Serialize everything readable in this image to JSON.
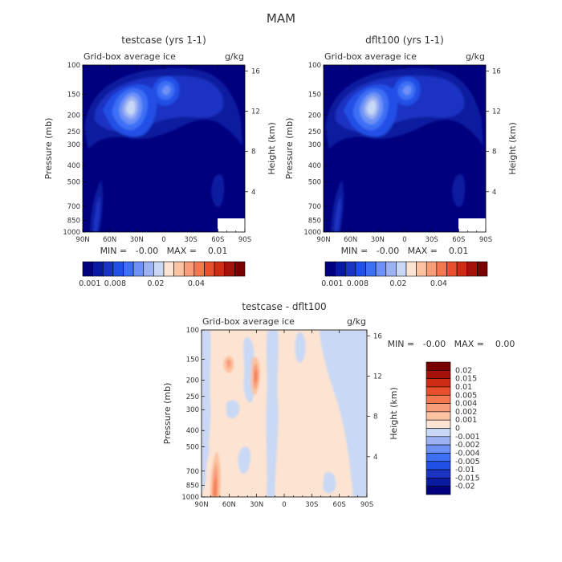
{
  "main_title": "MAM",
  "chart_data": [
    {
      "type": "heatmap",
      "title": "testcase (yrs 1-1)",
      "subtitle_left": "Grid-box average ice",
      "subtitle_right": "g/kg",
      "xlabel": "",
      "ylabel": "Pressure (mb)",
      "ylabel_right": "Height (km)",
      "x_ticks": [
        "90N",
        "60N",
        "30N",
        "0",
        "30S",
        "60S",
        "90S"
      ],
      "y_ticks": [
        "100",
        "150",
        "200",
        "250",
        "300",
        "400",
        "500",
        "700",
        "850",
        "1000"
      ],
      "y_ticks_right": [
        "16",
        "12",
        "8",
        "4"
      ],
      "stats": "MIN =   -0.00   MAX =    0.01",
      "colorbar": {
        "orientation": "horizontal",
        "labels": [
          "0.001",
          "0.008",
          "0.02",
          "0.04"
        ],
        "colors": [
          "#00007f",
          "#0a1a9e",
          "#1a33c2",
          "#2050e6",
          "#3d6ff5",
          "#6e91f7",
          "#9cb2f2",
          "#c8d8f5",
          "#fde4d2",
          "#fcc2a2",
          "#f89d7a",
          "#f4784f",
          "#e84f2c",
          "#cf2c16",
          "#a51209",
          "#7a0000"
        ]
      }
    },
    {
      "type": "heatmap",
      "title": "dflt100 (yrs 1-1)",
      "subtitle_left": "Grid-box average ice",
      "subtitle_right": "g/kg",
      "xlabel": "",
      "ylabel": "Pressure (mb)",
      "ylabel_right": "Height (km)",
      "x_ticks": [
        "90N",
        "60N",
        "30N",
        "0",
        "30S",
        "60S",
        "90S"
      ],
      "y_ticks": [
        "100",
        "150",
        "200",
        "250",
        "300",
        "400",
        "500",
        "700",
        "850",
        "1000"
      ],
      "y_ticks_right": [
        "16",
        "12",
        "8",
        "4"
      ],
      "stats": "MIN =   -0.00   MAX =    0.01",
      "colorbar": {
        "orientation": "horizontal",
        "labels": [
          "0.001",
          "0.008",
          "0.02",
          "0.04"
        ],
        "colors": [
          "#00007f",
          "#0a1a9e",
          "#1a33c2",
          "#2050e6",
          "#3d6ff5",
          "#6e91f7",
          "#9cb2f2",
          "#c8d8f5",
          "#fde4d2",
          "#fcc2a2",
          "#f89d7a",
          "#f4784f",
          "#e84f2c",
          "#cf2c16",
          "#a51209",
          "#7a0000"
        ]
      }
    },
    {
      "type": "heatmap",
      "title": "testcase - dflt100",
      "subtitle_left": "Grid-box average ice",
      "subtitle_right": "g/kg",
      "xlabel": "",
      "ylabel": "Pressure (mb)",
      "ylabel_right": "Height (km)",
      "x_ticks": [
        "90N",
        "60N",
        "30N",
        "0",
        "30S",
        "60S",
        "90S"
      ],
      "y_ticks": [
        "100",
        "150",
        "200",
        "250",
        "300",
        "400",
        "500",
        "700",
        "850",
        "1000"
      ],
      "y_ticks_right": [
        "16",
        "12",
        "8",
        "4"
      ],
      "stats": "MIN =   -0.00   MAX =    0.00",
      "colorbar": {
        "orientation": "vertical",
        "labels": [
          "0.02",
          "0.015",
          "0.01",
          "0.005",
          "0.004",
          "0.002",
          "0.001",
          "0",
          "-0.001",
          "-0.002",
          "-0.004",
          "-0.005",
          "-0.01",
          "-0.015",
          "-0.02"
        ],
        "colors": [
          "#7a0000",
          "#a51209",
          "#cf2c16",
          "#e84f2c",
          "#f4784f",
          "#f89d7a",
          "#fcc2a2",
          "#fde4d2",
          "#c8d8f5",
          "#9cb2f2",
          "#6e91f7",
          "#3d6ff5",
          "#2050e6",
          "#1a33c2",
          "#0a1a9e",
          "#00007f"
        ]
      }
    }
  ]
}
